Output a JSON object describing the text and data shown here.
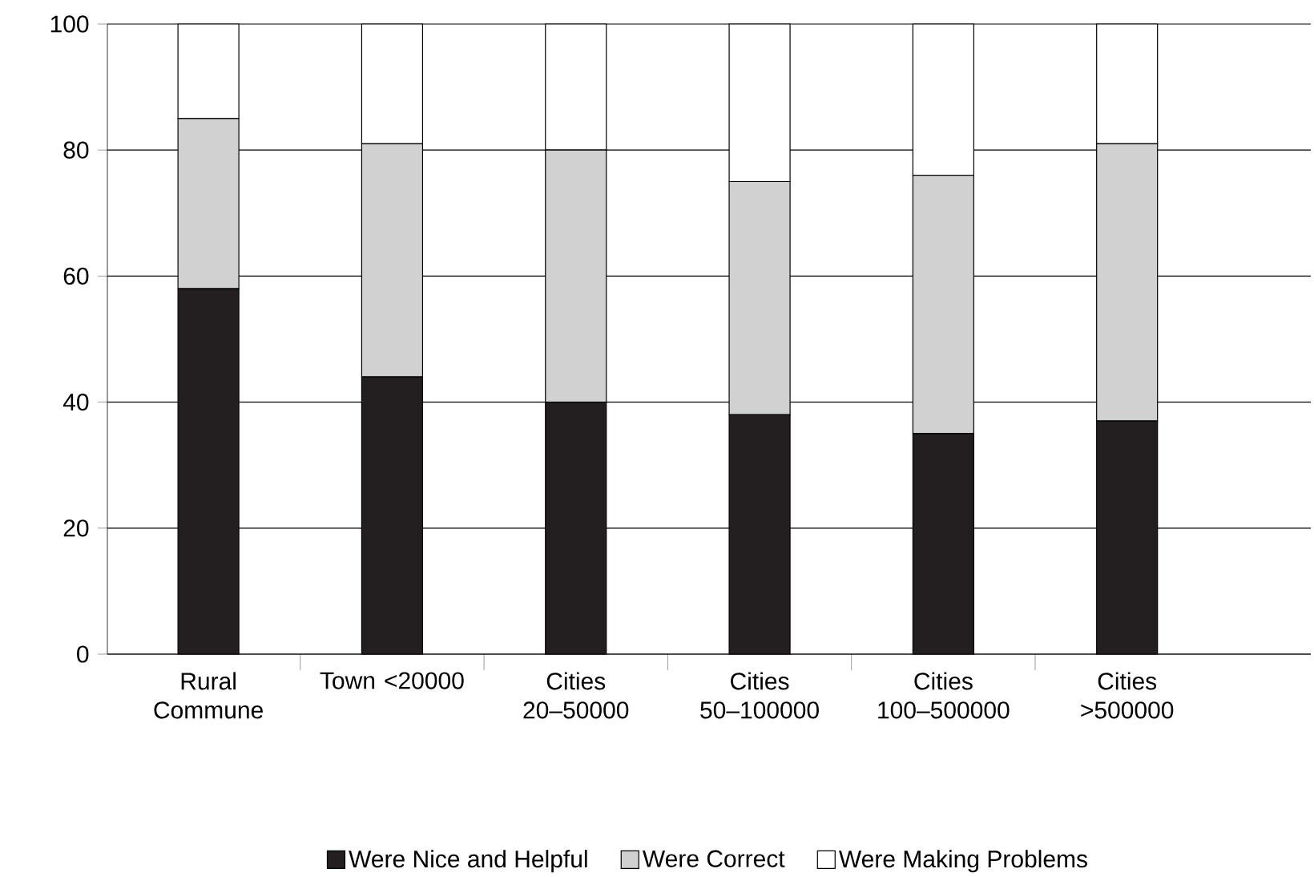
{
  "chart_data": {
    "type": "bar",
    "stacked": true,
    "categories": [
      "Rural Commune",
      "Town <20000",
      "Cities 20–50000",
      "Cities 50–100000",
      "Cities 100–500000",
      "Cities >500000"
    ],
    "series": [
      {
        "name": "Were Nice and Helpful",
        "color": "#231f20",
        "values": [
          58,
          44,
          40,
          38,
          35,
          37
        ]
      },
      {
        "name": "Were Correct",
        "color": "#d1d1d1",
        "values": [
          27,
          37,
          40,
          37,
          41,
          44
        ]
      },
      {
        "name": "Were Making Problems",
        "color": "#ffffff",
        "values": [
          15,
          19,
          20,
          25,
          24,
          19
        ]
      }
    ],
    "ylim": [
      0,
      100
    ],
    "yticks": [
      0,
      20,
      40,
      60,
      80,
      100
    ],
    "grid": "y",
    "legend": "bottom"
  }
}
